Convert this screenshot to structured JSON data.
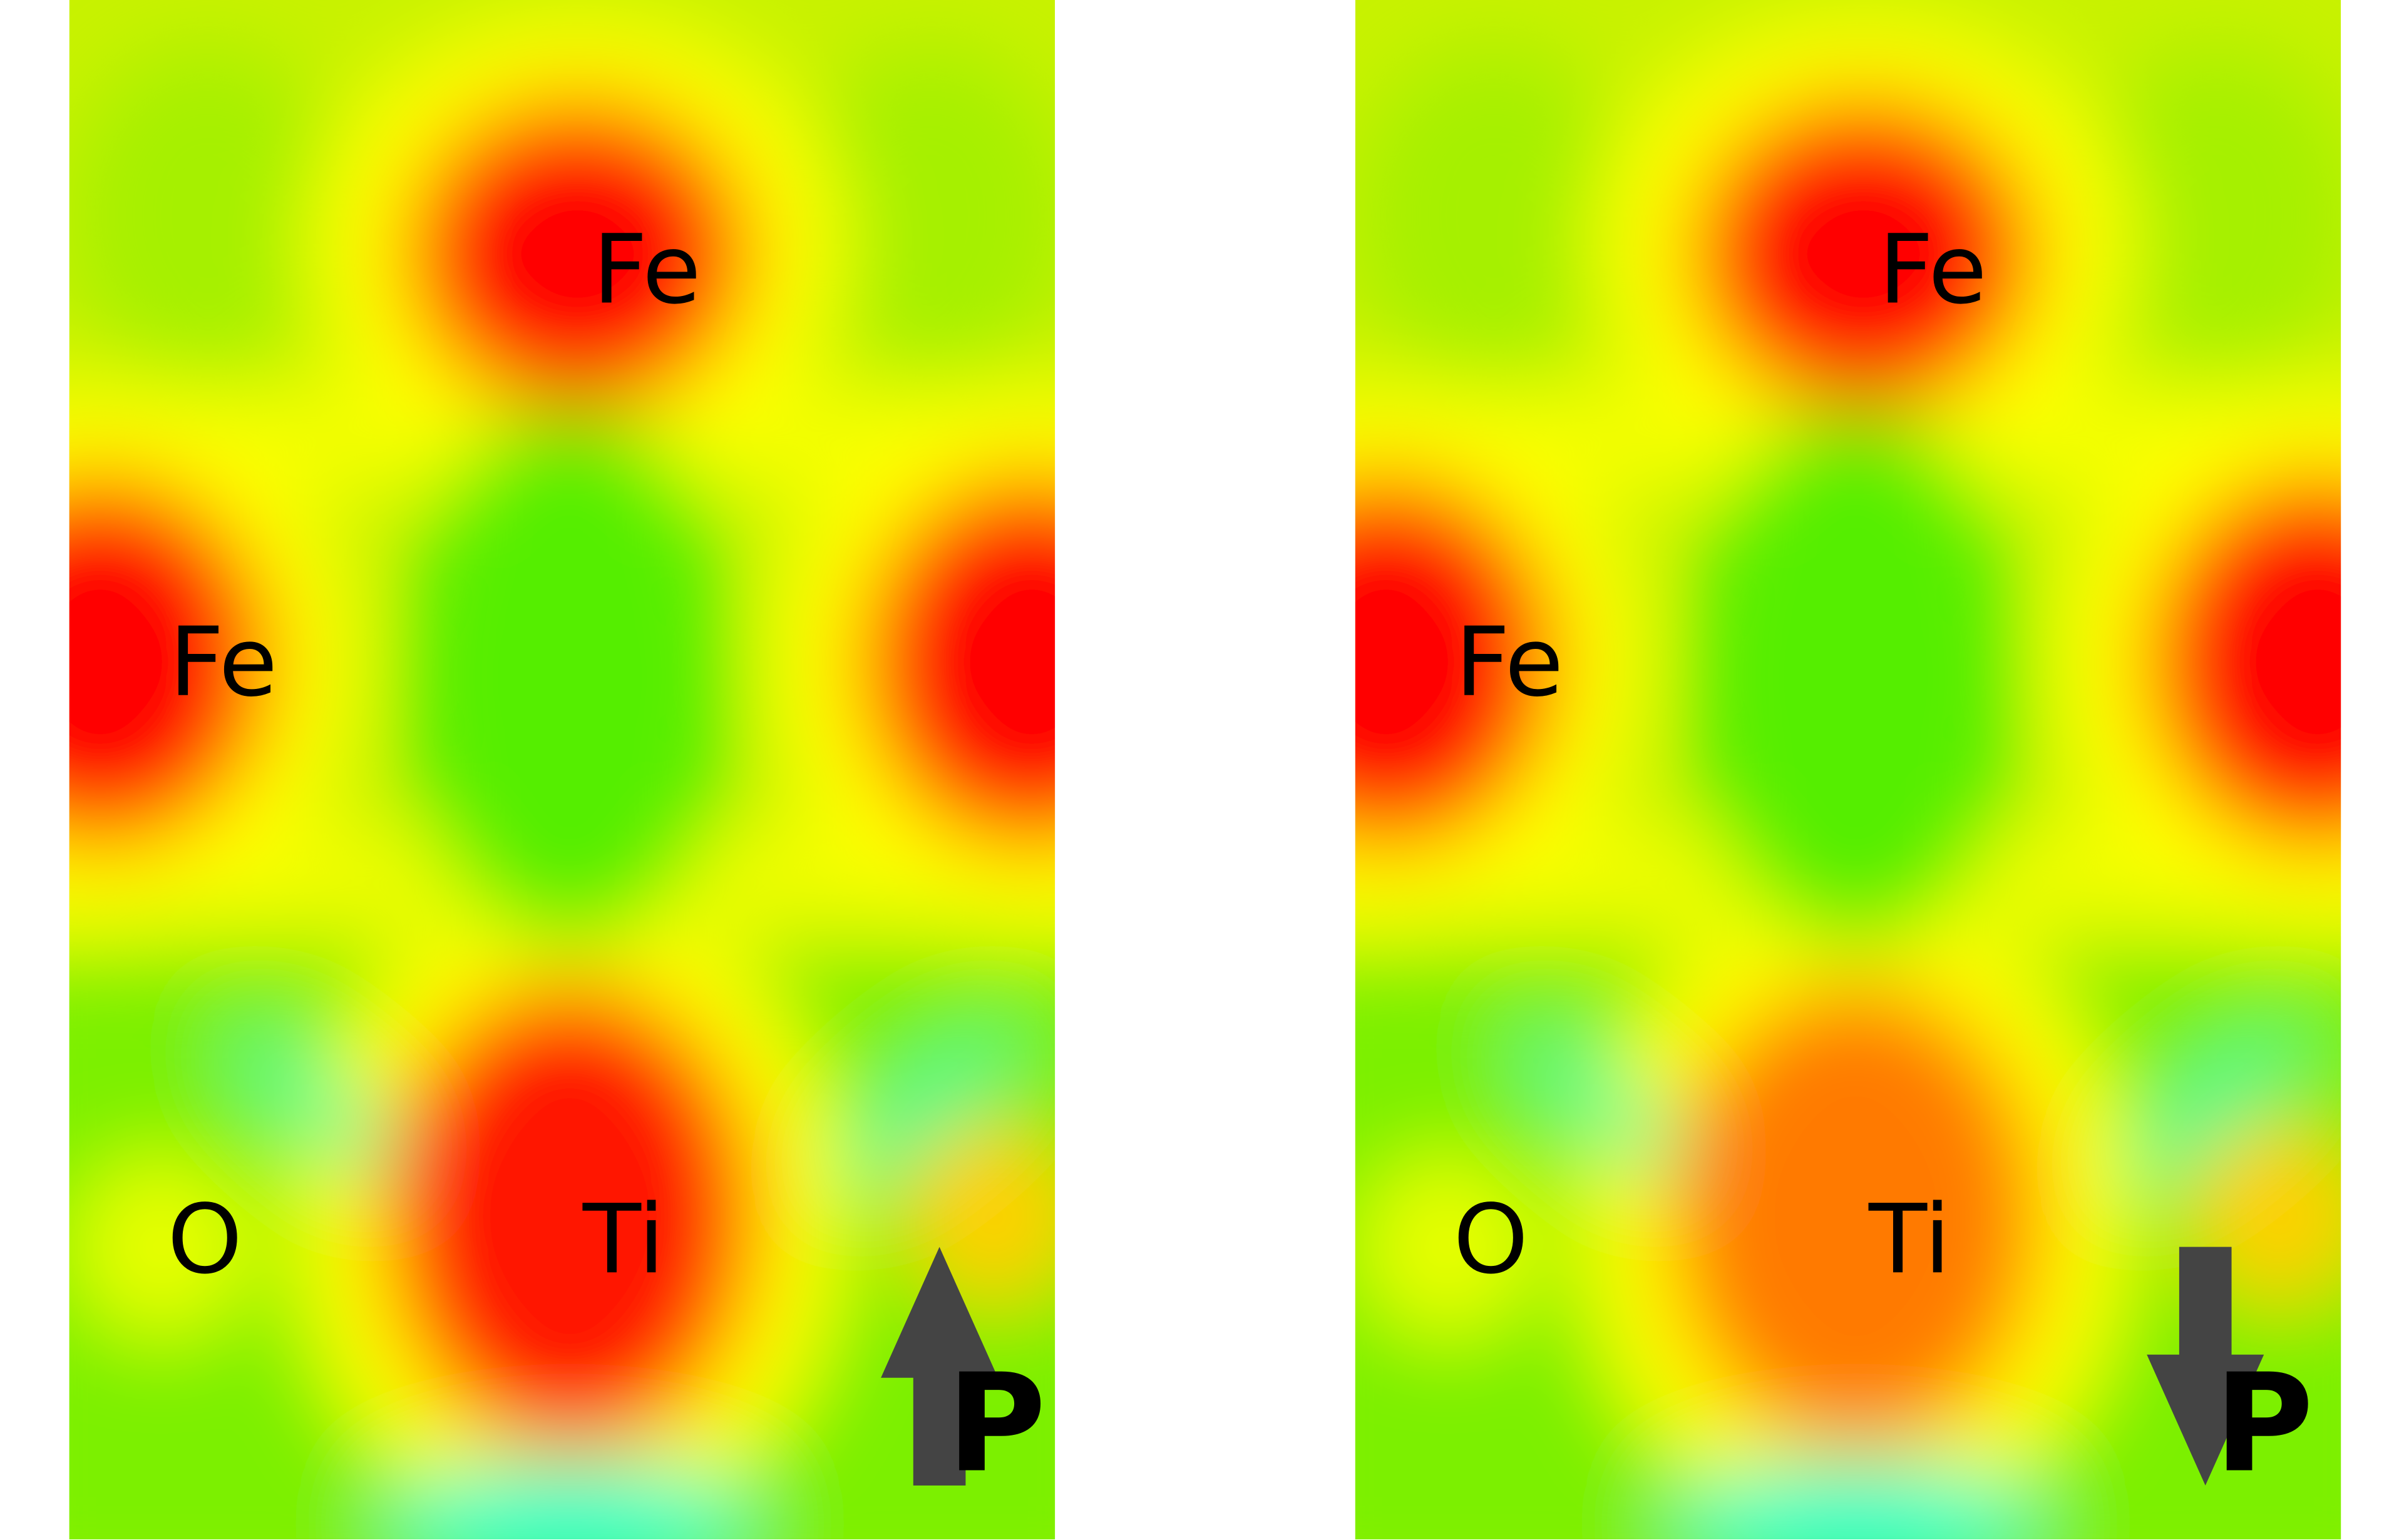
{
  "panels": [
    {
      "labels": [
        "Fe",
        "Fe",
        "Ti",
        "O"
      ],
      "ti_color": "#ff1800",
      "polarization": {
        "label": "P",
        "direction": "up"
      }
    },
    {
      "labels": [
        "Fe",
        "Fe",
        "Ti",
        "O"
      ],
      "ti_color": "#ff7a00",
      "polarization": {
        "label": "P",
        "direction": "down"
      }
    }
  ]
}
